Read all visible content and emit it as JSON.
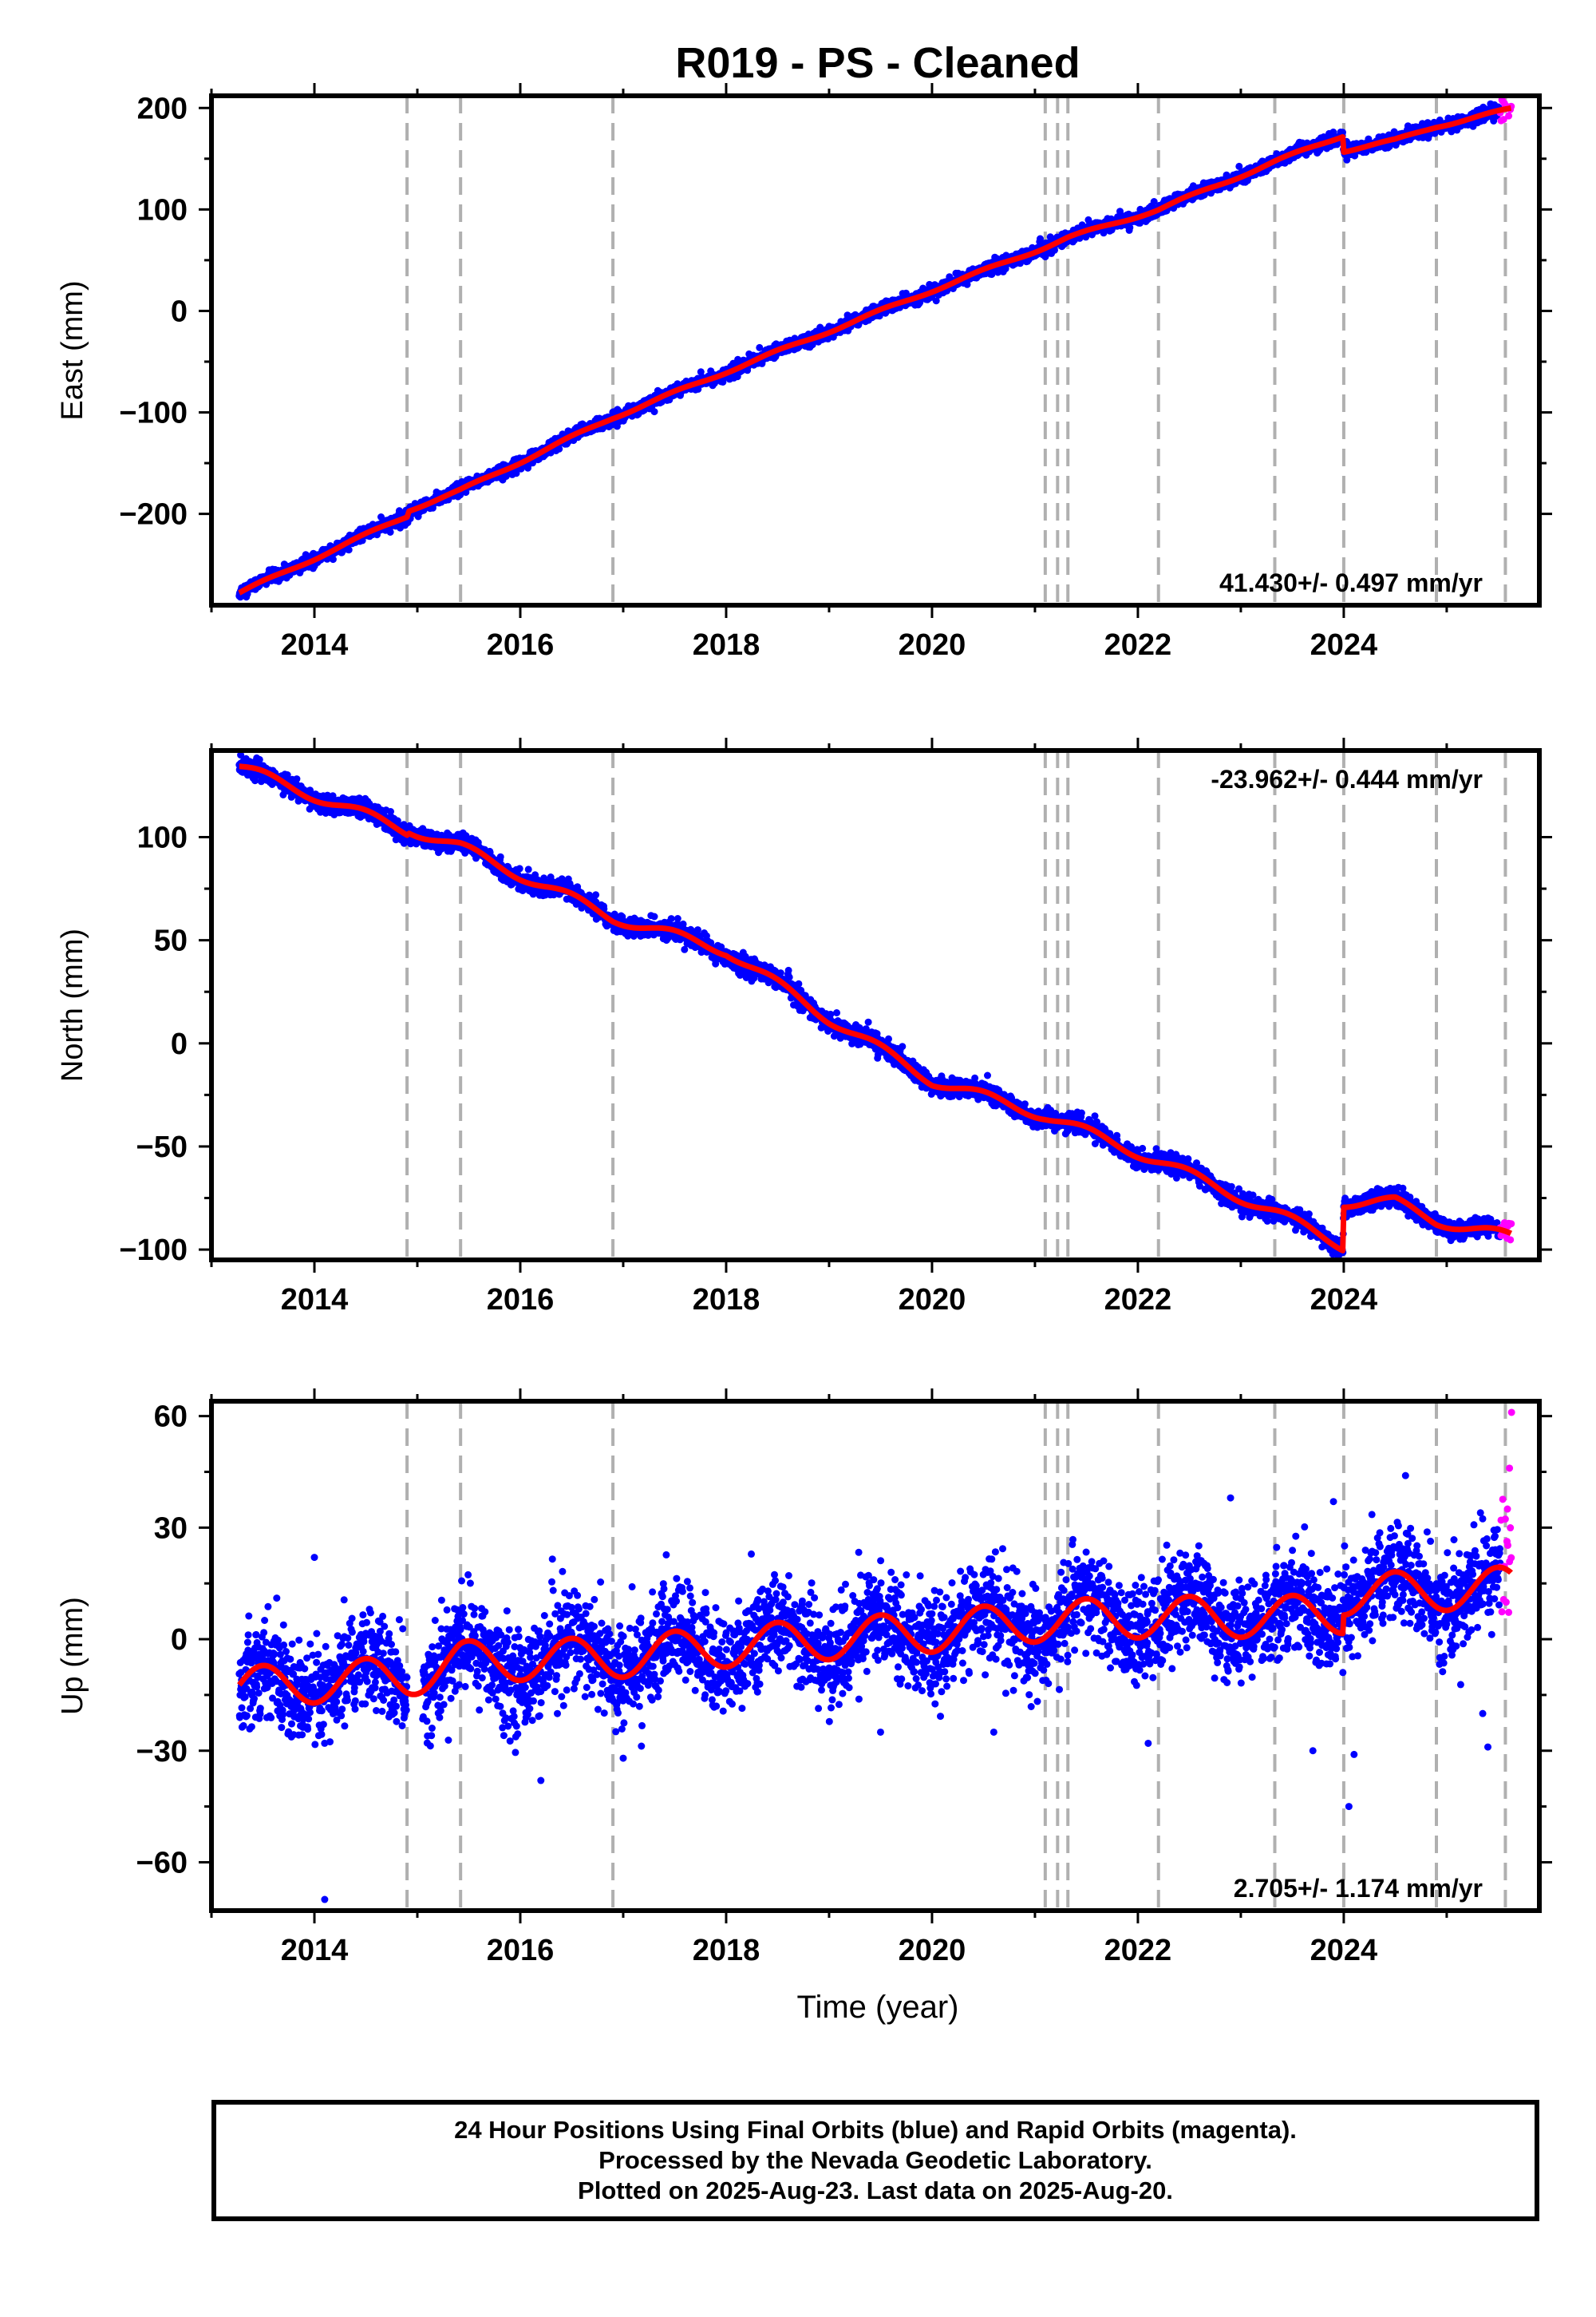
{
  "title": "R019  - PS - Cleaned",
  "colors": {
    "final": "#0000ff",
    "rapid": "#ff00ff",
    "model": "#ff0000",
    "events": "#b0b0b0"
  },
  "chart_data": {
    "type": "scatter",
    "xlabel": "Time (year)",
    "xlim": [
      2013.0,
      2025.9
    ],
    "xticks": [
      2014,
      2016,
      2018,
      2020,
      2022,
      2024
    ],
    "x_tick_labels": [
      "2014",
      "2016",
      "2018",
      "2020",
      "2022",
      "2024"
    ],
    "event_lines": [
      2014.9,
      2015.42,
      2016.9,
      2021.1,
      2021.22,
      2021.32,
      2022.2,
      2023.33,
      2024.0,
      2024.9,
      2025.57
    ],
    "data_start": 2013.27,
    "final_end": 2025.52,
    "data_end": 2025.63,
    "panels": [
      {
        "ylabel": "East (mm)",
        "ylim": [
          -290,
          212
        ],
        "yticks": [
          200,
          100,
          0,
          -100,
          -200
        ],
        "y_tick_labels": [
          "200",
          "100",
          "0",
          "−100",
          "−200"
        ],
        "rate_label": "41.430+/- 0.497 mm/yr",
        "rate_position": "bottom-right",
        "trend_knots": [
          [
            2013.27,
            -278
          ],
          [
            2014.9,
            -202
          ],
          [
            2014.92,
            -196
          ],
          [
            2015.42,
            -177
          ],
          [
            2016.9,
            -105
          ],
          [
            2018.0,
            -60
          ],
          [
            2020.0,
            20
          ],
          [
            2021.1,
            63
          ],
          [
            2021.32,
            72
          ],
          [
            2022.2,
            100
          ],
          [
            2023.33,
            147
          ],
          [
            2023.99,
            173
          ],
          [
            2024.0,
            158
          ],
          [
            2024.5,
            168
          ],
          [
            2024.9,
            182
          ],
          [
            2025.63,
            199
          ]
        ],
        "seasonal_amplitude": 1.5,
        "noise": 3.0
      },
      {
        "ylabel": "North (mm)",
        "ylim": [
          -105,
          142
        ],
        "yticks": [
          100,
          50,
          0,
          -50,
          -100
        ],
        "y_tick_labels": [
          "100",
          "50",
          "0",
          "−50",
          "−100"
        ],
        "rate_label": "-23.962+/- 0.444 mm/yr",
        "rate_position": "top-right",
        "trend_knots": [
          [
            2013.27,
            134
          ],
          [
            2014.9,
            103
          ],
          [
            2014.92,
            104
          ],
          [
            2015.42,
            95
          ],
          [
            2016.9,
            61
          ],
          [
            2018.0,
            45
          ],
          [
            2019.0,
            12
          ],
          [
            2020.0,
            -18
          ],
          [
            2021.1,
            -35
          ],
          [
            2022.2,
            -57
          ],
          [
            2023.33,
            -82
          ],
          [
            2023.99,
            -98
          ],
          [
            2024.0,
            -77
          ],
          [
            2024.5,
            -77
          ],
          [
            2024.9,
            -86
          ],
          [
            2025.63,
            -94
          ]
        ],
        "seasonal_amplitude": 2.5,
        "noise": 2.2
      },
      {
        "ylabel": "Up (mm)",
        "ylim": [
          -73,
          64
        ],
        "yticks": [
          60,
          30,
          0,
          -30,
          -60
        ],
        "y_tick_labels": [
          "60",
          "30",
          "0",
          "−30",
          "−60"
        ],
        "rate_label": "2.705+/- 1.174 mm/yr",
        "rate_position": "bottom-right",
        "trend_knots": [
          [
            2013.27,
            -13
          ],
          [
            2014.9,
            -10
          ],
          [
            2015.42,
            -6
          ],
          [
            2016.9,
            -5
          ],
          [
            2018.0,
            -2
          ],
          [
            2020.0,
            2
          ],
          [
            2021.1,
            5
          ],
          [
            2022.2,
            6
          ],
          [
            2023.33,
            6
          ],
          [
            2023.99,
            7
          ],
          [
            2024.0,
            12
          ],
          [
            2025.63,
            14
          ]
        ],
        "seasonal_amplitude": 5.5,
        "noise": 6.5,
        "outliers": [
          [
            2014.1,
            -70
          ],
          [
            2014.0,
            22
          ],
          [
            2016.2,
            -38
          ],
          [
            2023.7,
            -30
          ],
          [
            2024.05,
            -45
          ],
          [
            2024.1,
            -31
          ],
          [
            2022.9,
            38
          ],
          [
            2023.9,
            37
          ],
          [
            2024.6,
            44
          ],
          [
            2025.35,
            -20
          ],
          [
            2025.4,
            -29
          ],
          [
            2017.0,
            -32
          ],
          [
            2019.5,
            -25
          ],
          [
            2020.6,
            -25
          ],
          [
            2022.1,
            -28
          ]
        ],
        "rapid_extra": [
          61,
          46,
          35
        ]
      }
    ]
  },
  "footer": {
    "line1": "24 Hour Positions Using Final Orbits (blue) and Rapid Orbits (magenta).",
    "line2": "Processed by the Nevada Geodetic Laboratory.",
    "line3": "Plotted on 2025-Aug-23. Last data on 2025-Aug-20."
  }
}
